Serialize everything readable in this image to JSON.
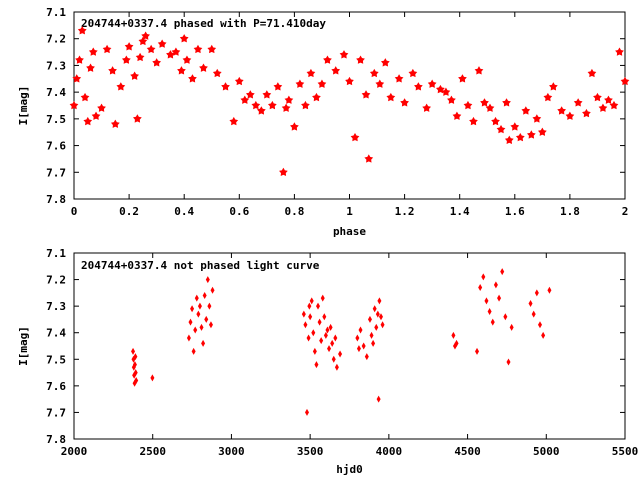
{
  "chart_data": [
    {
      "type": "scatter",
      "title": "204744+0337.4 phased with P=71.410day",
      "xlabel": "phase",
      "ylabel": "I[mag]",
      "xlim": [
        0,
        2
      ],
      "ylim": [
        7.1,
        7.8
      ],
      "y_inverted": true,
      "grid": false,
      "legend": "none",
      "marker": "star",
      "color": "#ff0000",
      "x_ticks": [
        "0",
        "0.2",
        "0.4",
        "0.6",
        "0.8",
        "1",
        "1.2",
        "1.4",
        "1.6",
        "1.8",
        "2"
      ],
      "x_tick_values": [
        0,
        0.2,
        0.4,
        0.6,
        0.8,
        1,
        1.2,
        1.4,
        1.6,
        1.8,
        2
      ],
      "y_ticks": [
        "7.1",
        "7.2",
        "7.3",
        "7.4",
        "7.5",
        "7.6",
        "7.7",
        "7.8"
      ],
      "y_tick_values": [
        7.1,
        7.2,
        7.3,
        7.4,
        7.5,
        7.6,
        7.7,
        7.8
      ],
      "x": [
        0.0,
        0.01,
        0.02,
        0.03,
        0.04,
        0.05,
        0.06,
        0.07,
        0.08,
        0.1,
        0.12,
        0.14,
        0.15,
        0.17,
        0.19,
        0.2,
        0.22,
        0.23,
        0.24,
        0.25,
        0.26,
        0.28,
        0.3,
        0.32,
        0.35,
        0.37,
        0.39,
        0.4,
        0.41,
        0.43,
        0.45,
        0.47,
        0.5,
        0.52,
        0.55,
        0.58,
        0.6,
        0.62,
        0.64,
        0.66,
        0.68,
        0.7,
        0.72,
        0.74,
        0.76,
        0.77,
        0.78,
        0.8,
        0.82,
        0.84,
        0.86,
        0.88,
        0.9,
        0.92,
        0.95,
        0.98,
        1.0,
        1.02,
        1.04,
        1.06,
        1.07,
        1.09,
        1.11,
        1.13,
        1.15,
        1.18,
        1.2,
        1.23,
        1.25,
        1.28,
        1.3,
        1.33,
        1.35,
        1.37,
        1.39,
        1.41,
        1.43,
        1.45,
        1.47,
        1.49,
        1.51,
        1.53,
        1.55,
        1.57,
        1.58,
        1.6,
        1.62,
        1.64,
        1.66,
        1.68,
        1.7,
        1.72,
        1.74,
        1.77,
        1.8,
        1.83,
        1.86,
        1.88,
        1.9,
        1.92,
        1.94,
        1.96,
        1.98,
        2.0
      ],
      "y": [
        7.45,
        7.35,
        7.28,
        7.17,
        7.42,
        7.51,
        7.31,
        7.25,
        7.49,
        7.46,
        7.24,
        7.32,
        7.52,
        7.38,
        7.28,
        7.23,
        7.34,
        7.5,
        7.27,
        7.21,
        7.19,
        7.24,
        7.29,
        7.22,
        7.26,
        7.25,
        7.32,
        7.2,
        7.28,
        7.35,
        7.24,
        7.31,
        7.24,
        7.33,
        7.38,
        7.51,
        7.36,
        7.43,
        7.41,
        7.45,
        7.47,
        7.41,
        7.45,
        7.38,
        7.7,
        7.46,
        7.43,
        7.53,
        7.37,
        7.45,
        7.33,
        7.42,
        7.37,
        7.28,
        7.32,
        7.26,
        7.36,
        7.57,
        7.28,
        7.41,
        7.65,
        7.33,
        7.37,
        7.29,
        7.42,
        7.35,
        7.44,
        7.33,
        7.38,
        7.46,
        7.37,
        7.39,
        7.4,
        7.43,
        7.49,
        7.35,
        7.45,
        7.51,
        7.32,
        7.44,
        7.46,
        7.51,
        7.54,
        7.44,
        7.58,
        7.53,
        7.57,
        7.47,
        7.56,
        7.5,
        7.55,
        7.42,
        7.38,
        7.47,
        7.49,
        7.44,
        7.48,
        7.33,
        7.42,
        7.46,
        7.43,
        7.45,
        7.25,
        7.36
      ]
    },
    {
      "type": "scatter",
      "title": "204744+0337.4 not phased light curve",
      "xlabel": "hjd0",
      "ylabel": "I[mag]",
      "xlim": [
        2000,
        5500
      ],
      "ylim": [
        7.1,
        7.8
      ],
      "y_inverted": true,
      "grid": false,
      "legend": "none",
      "marker": "diamond",
      "color": "#ff0000",
      "x_ticks": [
        "2000",
        "2500",
        "3000",
        "3500",
        "4000",
        "4500",
        "5000",
        "5500"
      ],
      "x_tick_values": [
        2000,
        2500,
        3000,
        3500,
        4000,
        4500,
        5000,
        5500
      ],
      "y_ticks": [
        "7.1",
        "7.2",
        "7.3",
        "7.4",
        "7.5",
        "7.6",
        "7.7",
        "7.8"
      ],
      "y_tick_values": [
        7.1,
        7.2,
        7.3,
        7.4,
        7.5,
        7.6,
        7.7,
        7.8
      ],
      "x": [
        2375,
        2378,
        2380,
        2382,
        2385,
        2387,
        2390,
        2392,
        2395,
        2498,
        2730,
        2740,
        2750,
        2760,
        2770,
        2780,
        2790,
        2800,
        2810,
        2820,
        2830,
        2840,
        2850,
        2860,
        2870,
        2880,
        3460,
        3470,
        3480,
        3490,
        3495,
        3500,
        3510,
        3520,
        3530,
        3540,
        3550,
        3560,
        3570,
        3580,
        3590,
        3600,
        3610,
        3620,
        3630,
        3640,
        3650,
        3660,
        3670,
        3690,
        3800,
        3810,
        3820,
        3840,
        3860,
        3880,
        3890,
        3900,
        3910,
        3920,
        3930,
        3935,
        3940,
        3950,
        3960,
        4410,
        4420,
        4430,
        4560,
        4580,
        4600,
        4620,
        4640,
        4660,
        4680,
        4700,
        4720,
        4740,
        4760,
        4780,
        4900,
        4920,
        4940,
        4960,
        4980,
        5020
      ],
      "y": [
        7.47,
        7.5,
        7.53,
        7.56,
        7.59,
        7.52,
        7.49,
        7.55,
        7.58,
        7.57,
        7.42,
        7.36,
        7.31,
        7.47,
        7.39,
        7.27,
        7.33,
        7.3,
        7.38,
        7.44,
        7.26,
        7.35,
        7.2,
        7.3,
        7.37,
        7.24,
        7.33,
        7.37,
        7.7,
        7.42,
        7.3,
        7.34,
        7.28,
        7.4,
        7.47,
        7.52,
        7.3,
        7.36,
        7.43,
        7.27,
        7.34,
        7.41,
        7.39,
        7.46,
        7.38,
        7.44,
        7.5,
        7.42,
        7.53,
        7.48,
        7.42,
        7.46,
        7.39,
        7.45,
        7.49,
        7.35,
        7.41,
        7.44,
        7.31,
        7.38,
        7.33,
        7.65,
        7.28,
        7.34,
        7.37,
        7.41,
        7.45,
        7.44,
        7.47,
        7.23,
        7.19,
        7.28,
        7.32,
        7.36,
        7.22,
        7.27,
        7.17,
        7.34,
        7.51,
        7.38,
        7.29,
        7.33,
        7.25,
        7.37,
        7.41,
        7.24
      ]
    }
  ]
}
